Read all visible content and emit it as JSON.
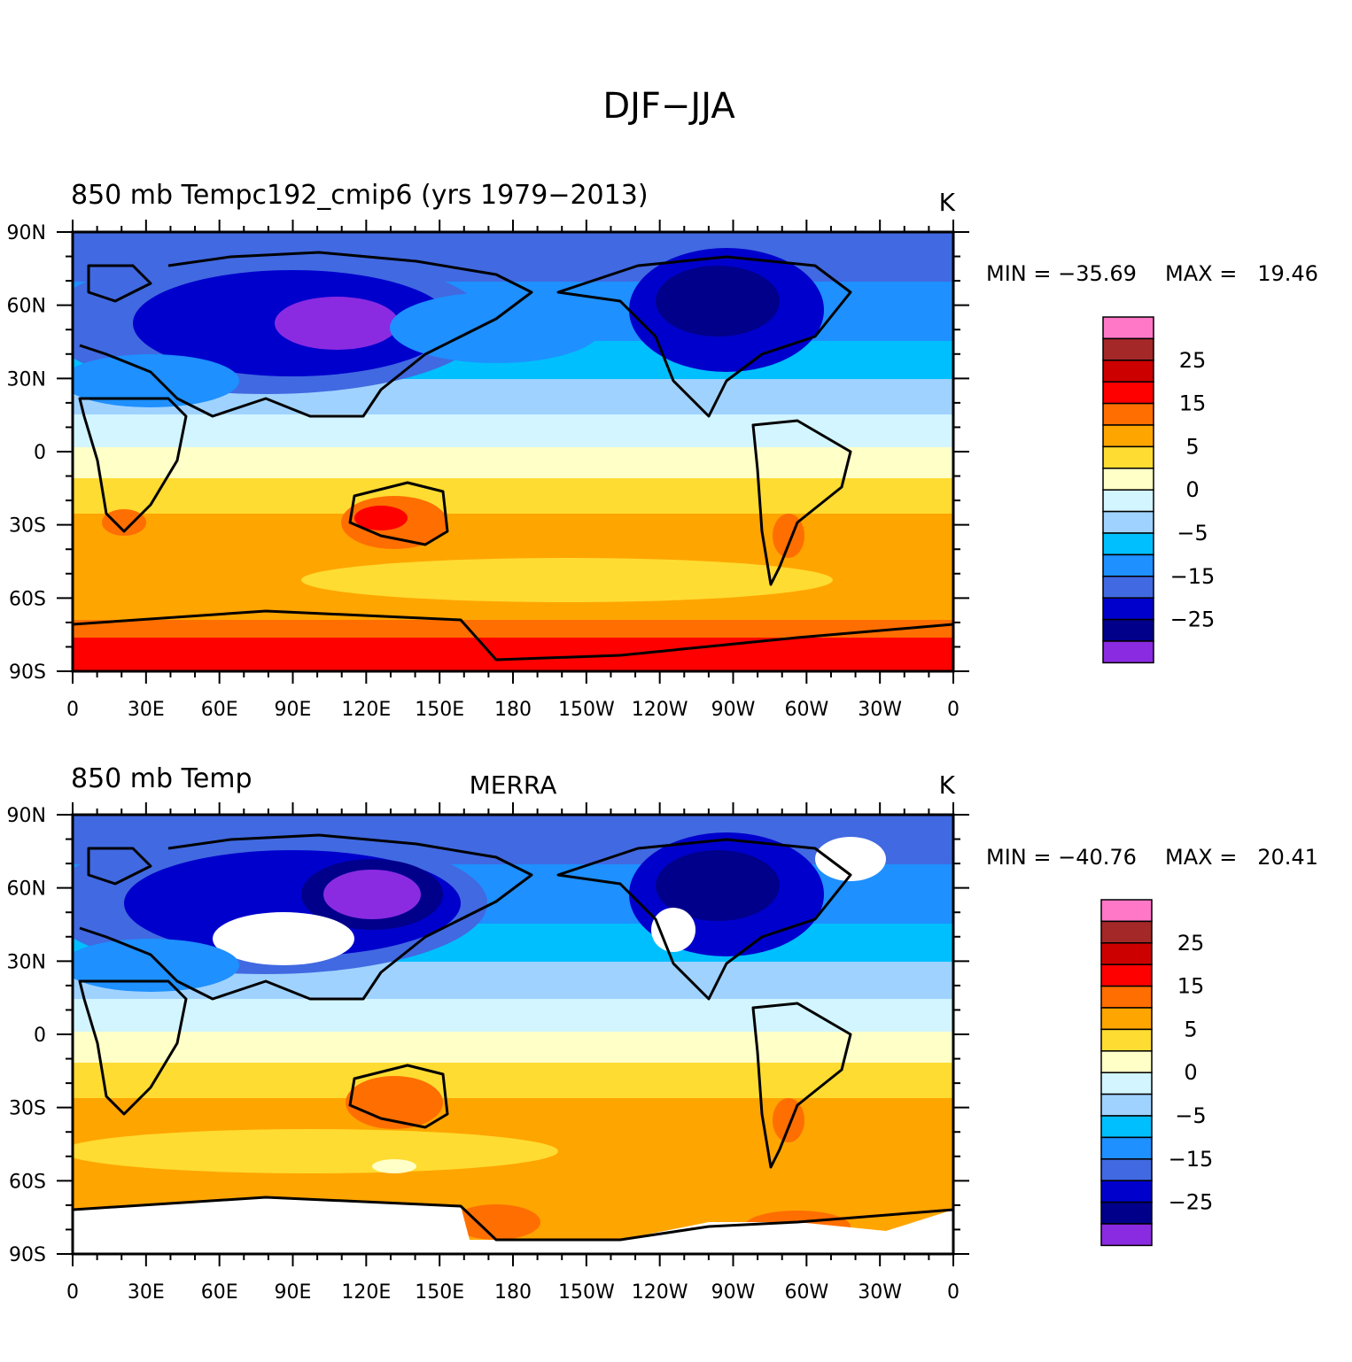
{
  "figure_title": "DJF−JJA",
  "colors": [
    "#ff78c8",
    "#a52828",
    "#cd0000",
    "#ff0000",
    "#ff6e00",
    "#ffa500",
    "#ffdc32",
    "#ffffc8",
    "#d2f5ff",
    "#a0d2ff",
    "#00bfff",
    "#1e90ff",
    "#4169e1",
    "#0000cd",
    "#00008b",
    "#8a2be2"
  ],
  "colorbar_labels": [
    "25",
    "15",
    "5",
    "0",
    "−5",
    "−15",
    "−25"
  ],
  "x_ticks": [
    "0",
    "30E",
    "60E",
    "90E",
    "120E",
    "150E",
    "180",
    "150W",
    "120W",
    "90W",
    "60W",
    "30W",
    "0"
  ],
  "y_ticks": [
    "90N",
    "60N",
    "30N",
    "0",
    "30S",
    "60S",
    "90S"
  ],
  "chart_data": [
    {
      "type": "heatmap",
      "title_left": "850 mb Tempc192_cmip6 (yrs 1979−2013)",
      "title_center": "",
      "units": "K",
      "min_label": "MIN = −35.69",
      "max_label": "MAX =   19.46",
      "min": -35.69,
      "max": 19.46,
      "xlim": [
        0,
        360
      ],
      "ylim": [
        -90,
        90
      ],
      "levels": [
        -30,
        -25,
        -20,
        -15,
        -10,
        -5,
        -2,
        0,
        2,
        5,
        10,
        15,
        20,
        25,
        30
      ]
    },
    {
      "type": "heatmap",
      "title_left": "850 mb Temp",
      "title_center": "MERRA",
      "units": "K",
      "min_label": "MIN = −40.76",
      "max_label": "MAX =   20.41",
      "min": -40.76,
      "max": 20.41,
      "xlim": [
        0,
        360
      ],
      "ylim": [
        -90,
        90
      ],
      "levels": [
        -30,
        -25,
        -20,
        -15,
        -10,
        -5,
        -2,
        0,
        2,
        5,
        10,
        15,
        20,
        25,
        30
      ]
    }
  ]
}
